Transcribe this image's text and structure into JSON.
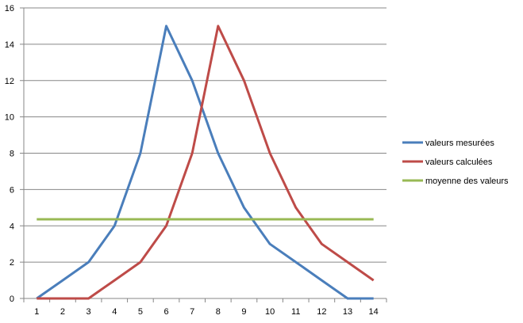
{
  "chart_data": {
    "type": "line",
    "title": "",
    "xlabel": "",
    "ylabel": "",
    "x": [
      1,
      2,
      3,
      4,
      5,
      6,
      7,
      8,
      9,
      10,
      11,
      12,
      13,
      14
    ],
    "ylim": [
      0,
      16
    ],
    "yticks": [
      0,
      2,
      4,
      6,
      8,
      10,
      12,
      14,
      16
    ],
    "grid": "horizontal",
    "legend_position": "right",
    "series": [
      {
        "name": "valeurs mesurées",
        "color": "#4a7ebb",
        "values": [
          0,
          1,
          2,
          4,
          8,
          15,
          12,
          8,
          5,
          3,
          2,
          1,
          0,
          0
        ]
      },
      {
        "name": "valeurs calculées",
        "color": "#be4b48",
        "values": [
          0,
          0,
          0,
          1,
          2,
          4,
          8,
          15,
          12,
          8,
          5,
          3,
          2,
          1
        ]
      },
      {
        "name": "moyenne des valeurs",
        "color": "#98b954",
        "values": [
          4.36,
          4.36,
          4.36,
          4.36,
          4.36,
          4.36,
          4.36,
          4.36,
          4.36,
          4.36,
          4.36,
          4.36,
          4.36,
          4.36
        ]
      }
    ]
  }
}
